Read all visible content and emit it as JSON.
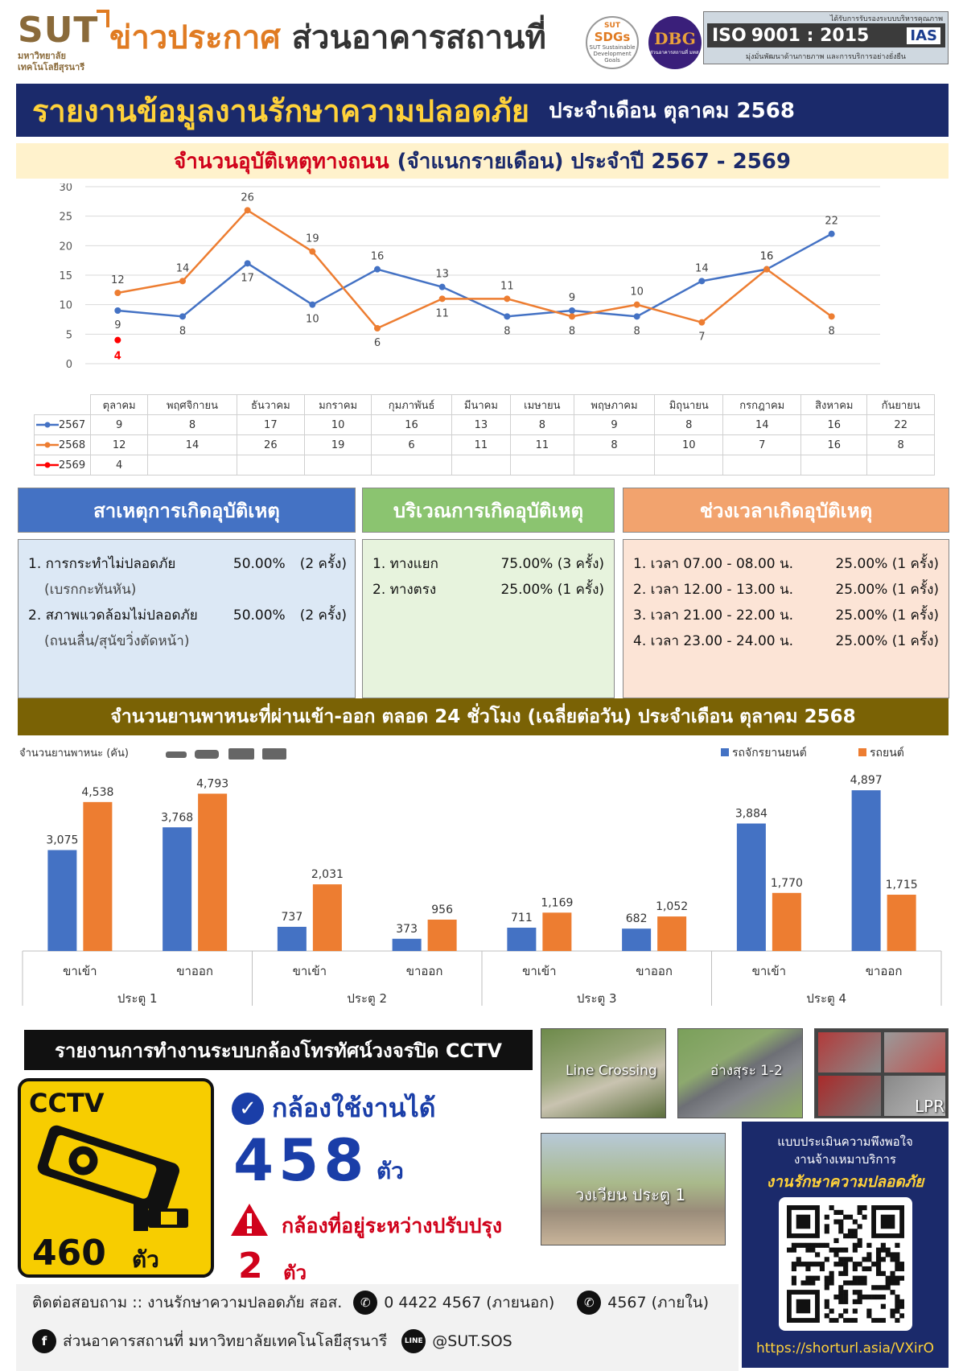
{
  "header": {
    "logo_main": "SUT",
    "logo_sub_1": "มหาวิทยาลัย",
    "logo_sub_2": "เทคโนโลยีสุรนารี",
    "title_part1": "ข่าวประกาศ",
    "title_part2": "ส่วนอาคารสถานที่",
    "sdgs_top": "SUT",
    "sdgs_label": "SDGs",
    "sdgs_sub": "SUT Sustainable Development Goals",
    "dbg_mark": "DBG",
    "dbg_sub": "ส่วนอาคารสถานที่ มทส.",
    "iso_top": "ได้รับการรับรองระบบบริหารคุณภาพ",
    "iso_label": "ISO",
    "iso_number": "9001 : 2015",
    "iso_ias": "IAS",
    "iso_bottom": "มุ่งมั่นพัฒนาด้านกายภาพ และการบริการอย่างยั่งยืน"
  },
  "banner": {
    "title": "รายงานข้อมูลงานรักษาความปลอดภัย",
    "period": "ประจำเดือน ตุลาคม 2568"
  },
  "accident_banner": {
    "part1": "จำนวนอุบัติเหตุทางถนน",
    "part2": "(จำแนกรายเดือน) ประจำปี 2567 - 2569"
  },
  "line_chart_data": {
    "type": "line",
    "categories": [
      "ตุลาคม",
      "พฤศจิกายน",
      "ธันวาคม",
      "มกราคม",
      "กุมภาพันธ์",
      "มีนาคม",
      "เมษายน",
      "พฤษภาคม",
      "มิถุนายน",
      "กรกฎาคม",
      "สิงหาคม",
      "กันยายน"
    ],
    "ylim": [
      0,
      30
    ],
    "yticks": [
      0,
      5,
      10,
      15,
      20,
      25,
      30
    ],
    "grid": true,
    "series": [
      {
        "name": "2567",
        "color": "#4472c4",
        "values": [
          9,
          8,
          17,
          10,
          16,
          13,
          8,
          9,
          8,
          14,
          16,
          22
        ]
      },
      {
        "name": "2568",
        "color": "#ed7d31",
        "values": [
          12,
          14,
          26,
          19,
          6,
          11,
          11,
          8,
          10,
          7,
          16,
          8
        ]
      },
      {
        "name": "2569",
        "color": "#ff0000",
        "values": [
          4,
          null,
          null,
          null,
          null,
          null,
          null,
          null,
          null,
          null,
          null,
          null
        ]
      }
    ]
  },
  "causes": {
    "title": "สาเหตุการเกิดอุบัติเหตุ",
    "head_color": "#4472c4",
    "body_color": "#dce8f5",
    "items": [
      {
        "label": "1. การกระทำไม่ปลอดภัย",
        "value": "50.00%",
        "count": "(2 ครั้ง)",
        "note": "(เบรกกะทันหัน)"
      },
      {
        "label": "2. สภาพแวดล้อมไม่ปลอดภัย",
        "value": "50.00%",
        "count": "(2 ครั้ง)",
        "note": "(ถนนลื่น/สุนัขวิ่งตัดหน้า)"
      }
    ]
  },
  "locations": {
    "title": "บริเวณการเกิดอุบัติเหตุ",
    "head_color": "#8bc470",
    "body_color": "#e7f3dd",
    "items": [
      {
        "label": "1. ทางแยก",
        "value": "75.00% (3 ครั้ง)"
      },
      {
        "label": "2. ทางตรง",
        "value": "25.00% (1 ครั้ง)"
      }
    ]
  },
  "times": {
    "title": "ช่วงเวลาเกิดอุบัติเหตุ",
    "head_color": "#f2a36e",
    "body_color": "#fce4d6",
    "items": [
      {
        "label": "1. เวลา 07.00 - 08.00 น.",
        "value": "25.00% (1 ครั้ง)"
      },
      {
        "label": "2. เวลา 12.00 - 13.00 น.",
        "value": "25.00% (1 ครั้ง)"
      },
      {
        "label": "3. เวลา 21.00 - 22.00 น.",
        "value": "25.00% (1 ครั้ง)"
      },
      {
        "label": "4. เวลา 23.00 - 24.00 น.",
        "value": "25.00% (1 ครั้ง)"
      }
    ]
  },
  "vehicle_banner": "จำนวนยานพาหนะที่ผ่านเข้า-ออก ตลอด 24 ชั่วโมง (เฉลี่ยต่อวัน) ประจำเดือน ตุลาคม 2568",
  "chart_data": {
    "type": "bar",
    "ylabel": "จำนวนยานพาหนะ (คัน)",
    "legend_position": "top-right",
    "categories": [
      "ขาเข้า",
      "ขาออก",
      "ขาเข้า",
      "ขาออก",
      "ขาเข้า",
      "ขาออก",
      "ขาเข้า",
      "ขาออก"
    ],
    "groups": [
      "ประตู 1",
      "ประตู 2",
      "ประตู 3",
      "ประตู 4"
    ],
    "series": [
      {
        "name": "รถจักรยานยนต์",
        "color": "#4472c4",
        "values": [
          3075,
          3768,
          737,
          373,
          711,
          682,
          3884,
          4897
        ],
        "labels": [
          "3,075",
          "3,768",
          "737",
          "373",
          "711",
          "682",
          "3,884",
          "4,897"
        ]
      },
      {
        "name": "รถยนต์",
        "color": "#ed7d31",
        "values": [
          4538,
          4793,
          2031,
          956,
          1169,
          1052,
          1770,
          1715
        ],
        "labels": [
          "4,538",
          "4,793",
          "2,031",
          "956",
          "1,169",
          "1,052",
          "1,770",
          "1,715"
        ]
      }
    ],
    "ylim": [
      0,
      5000
    ]
  },
  "cctv": {
    "banner": "รายงานการทำงานระบบกล้องโทรทัศน์วงจรปิด CCTV",
    "sign_label": "CCTV",
    "total": "460",
    "unit": "ตัว",
    "ok_label": "กล้องใช้งานได้",
    "ok_count": "458",
    "repair_label": "กล้องที่อยู่ระหว่างปรับปรุง",
    "repair_count": "2",
    "photos": [
      "Line Crossing",
      "อ่างสุระ 1-2",
      "LPR",
      "วงเวียน ประตู 1"
    ]
  },
  "survey": {
    "line1": "แบบประเมินความพึงพอใจ",
    "line2": "งานจ้างเหมาบริการ",
    "highlight": "งานรักษาความปลอดภัย",
    "url": "https://shorturl.asia/VXirO"
  },
  "footer": {
    "contact": "ติดต่อสอบถาม :: งานรักษาความปลอดภัย สอส.",
    "phone_external": "0 4422 4567 (ภายนอก)",
    "phone_internal": "4567 (ภายใน)",
    "facebook": "ส่วนอาคารสถานที่ มหาวิทยาลัยเทคโนโลยีสุรนารี",
    "line_id": "@SUT.SOS"
  }
}
